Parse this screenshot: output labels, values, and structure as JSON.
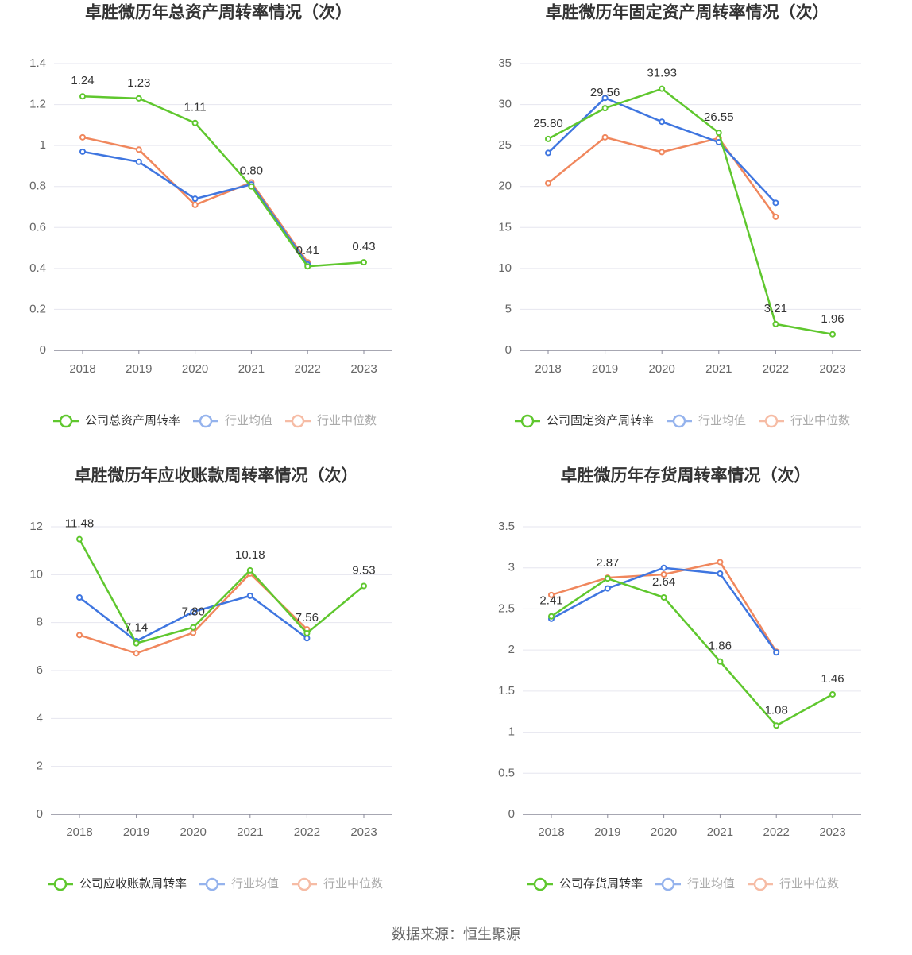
{
  "colors": {
    "company": "#5fc72e",
    "average": "#3f76e0",
    "median": "#f0875d",
    "grid": "#e6e6ef",
    "axis": "#8a8a99",
    "title": "#333333",
    "tick": "#666666"
  },
  "source_label": "数据来源：恒生聚源",
  "chart_data": [
    {
      "type": "line",
      "title": "卓胜微历年总资产周转率情况（次）",
      "x": [
        "2018",
        "2019",
        "2020",
        "2021",
        "2022",
        "2023"
      ],
      "ylim": [
        0,
        1.4
      ],
      "yticks": [
        "0",
        "0.2",
        "0.4",
        "0.6",
        "0.8",
        "1",
        "1.2",
        "1.4"
      ],
      "grid": true,
      "legend_position": "bottom",
      "series": [
        {
          "name": "公司总资产周转率",
          "values": [
            1.24,
            1.23,
            1.11,
            0.8,
            0.41,
            0.43
          ],
          "labels": [
            "1.24",
            "1.23",
            "1.11",
            "0.80",
            "0.41",
            "0.43"
          ]
        },
        {
          "name": "行业均值",
          "values": [
            0.97,
            0.92,
            0.74,
            0.81,
            0.42,
            null
          ]
        },
        {
          "name": "行业中位数",
          "values": [
            1.04,
            0.98,
            0.71,
            0.82,
            0.43,
            null
          ]
        }
      ]
    },
    {
      "type": "line",
      "title": "卓胜微历年固定资产周转率情况（次）",
      "x": [
        "2018",
        "2019",
        "2020",
        "2021",
        "2022",
        "2023"
      ],
      "ylim": [
        0,
        35
      ],
      "yticks": [
        "0",
        "5",
        "10",
        "15",
        "20",
        "25",
        "30",
        "35"
      ],
      "grid": true,
      "legend_position": "bottom",
      "series": [
        {
          "name": "公司固定资产周转率",
          "values": [
            25.8,
            29.56,
            31.93,
            26.55,
            3.21,
            1.96
          ],
          "labels": [
            "25.80",
            "29.56",
            "31.93",
            "26.55",
            "3.21",
            "1.96"
          ]
        },
        {
          "name": "行业均值",
          "values": [
            24.1,
            30.8,
            27.9,
            25.4,
            18.0,
            null
          ]
        },
        {
          "name": "行业中位数",
          "values": [
            20.4,
            26.0,
            24.2,
            25.9,
            16.3,
            null
          ]
        }
      ]
    },
    {
      "type": "line",
      "title": "卓胜微历年应收账款周转率情况（次）",
      "x": [
        "2018",
        "2019",
        "2020",
        "2021",
        "2022",
        "2023"
      ],
      "ylim": [
        0,
        12
      ],
      "yticks": [
        "0",
        "2",
        "4",
        "6",
        "8",
        "10",
        "12"
      ],
      "grid": true,
      "legend_position": "bottom",
      "series": [
        {
          "name": "公司应收账款周转率",
          "values": [
            11.48,
            7.14,
            7.8,
            10.18,
            7.56,
            9.53
          ],
          "labels": [
            "11.48",
            "7.14",
            "7.80",
            "10.18",
            "7.56",
            "9.53"
          ]
        },
        {
          "name": "行业均值",
          "values": [
            9.05,
            7.23,
            8.45,
            9.12,
            7.35,
            null
          ]
        },
        {
          "name": "行业中位数",
          "values": [
            7.48,
            6.72,
            7.58,
            10.05,
            7.72,
            null
          ]
        }
      ]
    },
    {
      "type": "line",
      "title": "卓胜微历年存货周转率情况（次）",
      "x": [
        "2018",
        "2019",
        "2020",
        "2021",
        "2022",
        "2023"
      ],
      "ylim": [
        0,
        3.5
      ],
      "yticks": [
        "0",
        "0.5",
        "1",
        "1.5",
        "2",
        "2.5",
        "3",
        "3.5"
      ],
      "grid": true,
      "legend_position": "bottom",
      "series": [
        {
          "name": "公司存货周转率",
          "values": [
            2.41,
            2.87,
            2.64,
            1.86,
            1.08,
            1.46
          ],
          "labels": [
            "2.41",
            "2.87",
            "2.64",
            "1.86",
            "1.08",
            "1.46"
          ]
        },
        {
          "name": "行业均值",
          "values": [
            2.38,
            2.75,
            3.0,
            2.93,
            1.97,
            null
          ]
        },
        {
          "name": "行业中位数",
          "values": [
            2.67,
            2.88,
            2.92,
            3.07,
            1.98,
            null
          ]
        }
      ]
    }
  ]
}
